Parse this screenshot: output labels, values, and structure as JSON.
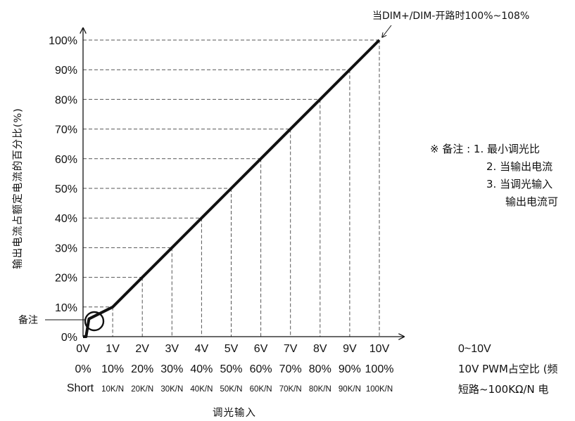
{
  "chart_data": {
    "type": "line",
    "series": [
      {
        "x": [
          0,
          0.1,
          0.2,
          1,
          2,
          3,
          4,
          5,
          6,
          7,
          8,
          9,
          10
        ],
        "y": [
          0,
          0,
          6,
          10,
          20,
          30,
          40,
          50,
          60,
          70,
          80,
          90,
          100
        ]
      }
    ],
    "xlim": [
      0,
      10
    ],
    "ylim": [
      0,
      100
    ],
    "x_ticks": [
      0,
      1,
      2,
      3,
      4,
      5,
      6,
      7,
      8,
      9,
      10
    ],
    "y_ticks": [
      0,
      10,
      20,
      30,
      40,
      50,
      60,
      70,
      80,
      90,
      100
    ],
    "x_tick_labels": [
      "0V",
      "1V",
      "2V",
      "3V",
      "4V",
      "5V",
      "6V",
      "7V",
      "8V",
      "9V",
      "10V"
    ],
    "x_tick_labels_pwm": [
      "0%",
      "10%",
      "20%",
      "30%",
      "40%",
      "50%",
      "60%",
      "70%",
      "80%",
      "90%",
      "100%"
    ],
    "x_tick_labels_resistance": [
      "Short",
      "10K/N",
      "20K/N",
      "30K/N",
      "40K/N",
      "50K/N",
      "60K/N",
      "70K/N",
      "80K/N",
      "90K/N",
      "100K/N"
    ],
    "y_tick_labels": [
      "0%",
      "10%",
      "20%",
      "30%",
      "40%",
      "50%",
      "60%",
      "70%",
      "80%",
      "90%",
      "100%"
    ],
    "xlabel": "调光输入",
    "ylabel": "输出电流占额定电流的百分比(%)",
    "grid": "dashed guide lines from each point to both axes",
    "annotations": {
      "top_right": "当DIM+/DIM-开路时100%~108%",
      "left_marker": "备注"
    },
    "colors": {
      "line": "#111111",
      "grid": "#555555"
    }
  },
  "x_axis_legend": {
    "line1": "0~10V",
    "line2": "10V PWM占空比 (频",
    "line3": "短路~100KΩ/N 电"
  },
  "notes": {
    "header": "※ 备注 : 1. 最小调光比",
    "line2": "2. 当输出电流",
    "line3": "3. 当调光输入",
    "line4": "输出电流可"
  }
}
